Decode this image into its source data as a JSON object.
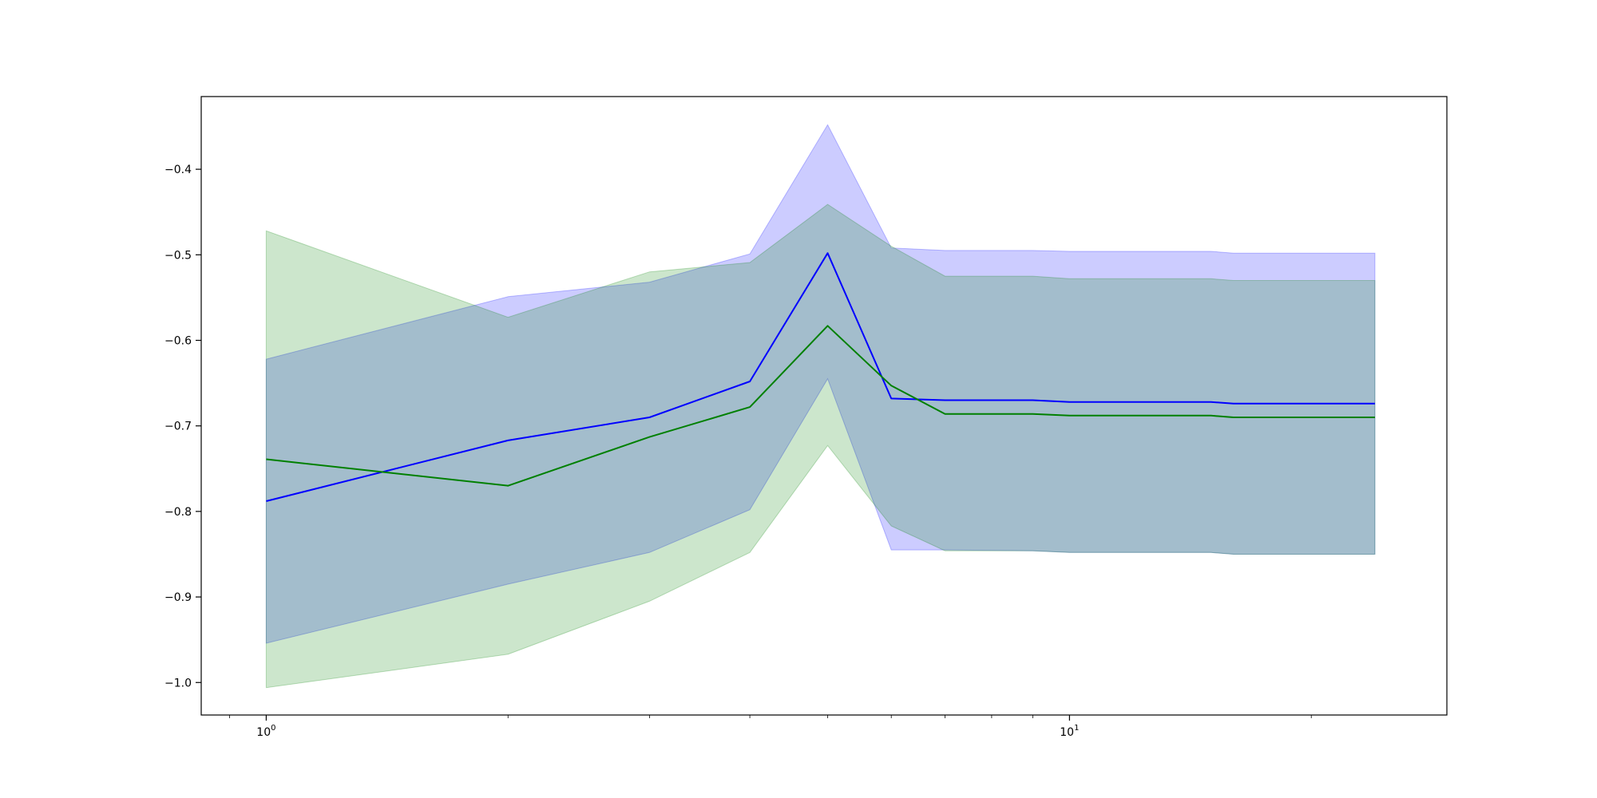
{
  "chart_data": {
    "type": "line",
    "title": "",
    "xlabel": "",
    "ylabel": "",
    "xscale": "log",
    "xlim": [
      0.83,
      29.5
    ],
    "ylim": [
      -1.038,
      -0.315
    ],
    "grid": false,
    "x": [
      1,
      2,
      3,
      4,
      5,
      6,
      7,
      9,
      10,
      15,
      16,
      24
    ],
    "x_ticks": [
      {
        "value": 1,
        "base": "10",
        "exponent": "0"
      },
      {
        "value": 10,
        "base": "10",
        "exponent": "1"
      }
    ],
    "y_ticks": [
      {
        "value": -0.4,
        "label": "−0.4"
      },
      {
        "value": -0.5,
        "label": "−0.5"
      },
      {
        "value": -0.6,
        "label": "−0.6"
      },
      {
        "value": -0.7,
        "label": "−0.7"
      },
      {
        "value": -0.8,
        "label": "−0.8"
      },
      {
        "value": -0.9,
        "label": "−0.9"
      },
      {
        "value": -1.0,
        "label": "−1.0"
      }
    ],
    "series": [
      {
        "color": "#0000ff",
        "fill_color": "#0000ff",
        "fill_opacity": 0.2,
        "values": [
          -0.788,
          -0.717,
          -0.69,
          -0.648,
          -0.498,
          -0.668,
          -0.67,
          -0.67,
          -0.672,
          -0.672,
          -0.674,
          -0.674
        ],
        "upper": [
          -0.622,
          -0.549,
          -0.532,
          -0.499,
          -0.348,
          -0.492,
          -0.495,
          -0.495,
          -0.496,
          -0.496,
          -0.498,
          -0.498
        ],
        "lower": [
          -0.954,
          -0.885,
          -0.848,
          -0.798,
          -0.645,
          -0.845,
          -0.845,
          -0.846,
          -0.848,
          -0.848,
          -0.85,
          -0.85
        ]
      },
      {
        "color": "#008000",
        "fill_color": "#008000",
        "fill_opacity": 0.2,
        "values": [
          -0.739,
          -0.77,
          -0.713,
          -0.678,
          -0.583,
          -0.653,
          -0.686,
          -0.686,
          -0.688,
          -0.688,
          -0.69,
          -0.69
        ],
        "upper": [
          -0.472,
          -0.573,
          -0.52,
          -0.509,
          -0.441,
          -0.49,
          -0.525,
          -0.525,
          -0.528,
          -0.528,
          -0.53,
          -0.53
        ],
        "lower": [
          -1.006,
          -0.967,
          -0.905,
          -0.848,
          -0.723,
          -0.817,
          -0.846,
          -0.846,
          -0.848,
          -0.848,
          -0.85,
          -0.85
        ]
      }
    ]
  }
}
